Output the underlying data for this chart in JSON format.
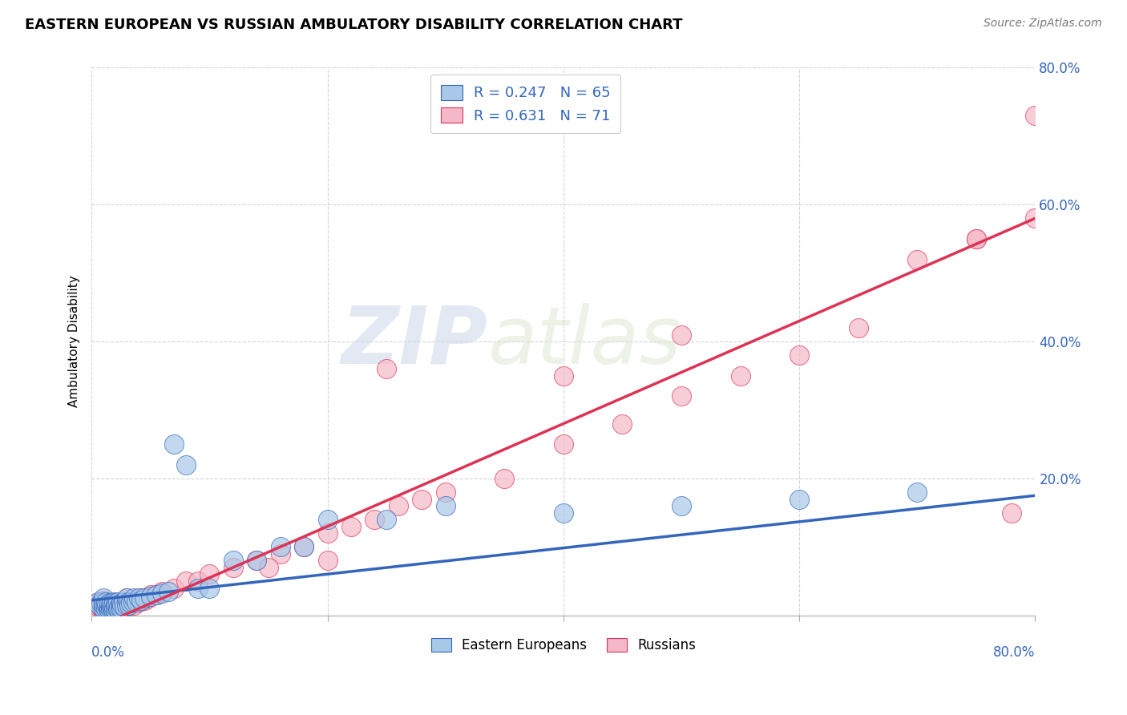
{
  "title": "EASTERN EUROPEAN VS RUSSIAN AMBULATORY DISABILITY CORRELATION CHART",
  "source": "Source: ZipAtlas.com",
  "ylabel": "Ambulatory Disability",
  "legend_blue_label": "R = 0.247   N = 65",
  "legend_pink_label": "R = 0.631   N = 71",
  "legend_bottom_blue": "Eastern Europeans",
  "legend_bottom_pink": "Russians",
  "blue_color": "#a8c8e8",
  "pink_color": "#f4b8c8",
  "blue_line_color": "#3366bb",
  "pink_line_color": "#dd3355",
  "watermark_zip": "ZIP",
  "watermark_atlas": "atlas",
  "xlim": [
    0.0,
    0.8
  ],
  "ylim": [
    0.0,
    0.8
  ],
  "ytick_vals": [
    0.0,
    0.2,
    0.4,
    0.6,
    0.8
  ],
  "ytick_labels": [
    "",
    "20.0%",
    "40.0%",
    "60.0%",
    "80.0%"
  ],
  "xtick_vals": [
    0.0,
    0.2,
    0.4,
    0.6,
    0.8
  ],
  "blue_regression": [
    0.022,
    0.175
  ],
  "pink_regression": [
    -0.02,
    0.58
  ],
  "blue_scatter_x": [
    0.005,
    0.007,
    0.008,
    0.01,
    0.01,
    0.01,
    0.01,
    0.012,
    0.012,
    0.013,
    0.014,
    0.015,
    0.015,
    0.015,
    0.016,
    0.016,
    0.017,
    0.017,
    0.018,
    0.018,
    0.019,
    0.019,
    0.02,
    0.02,
    0.02,
    0.021,
    0.022,
    0.022,
    0.023,
    0.024,
    0.025,
    0.025,
    0.026,
    0.027,
    0.028,
    0.03,
    0.03,
    0.031,
    0.032,
    0.033,
    0.035,
    0.036,
    0.038,
    0.04,
    0.042,
    0.045,
    0.05,
    0.055,
    0.06,
    0.065,
    0.07,
    0.08,
    0.09,
    0.1,
    0.12,
    0.14,
    0.16,
    0.18,
    0.2,
    0.25,
    0.3,
    0.4,
    0.5,
    0.6,
    0.7
  ],
  "blue_scatter_y": [
    0.02,
    0.015,
    0.018,
    0.01,
    0.015,
    0.02,
    0.025,
    0.01,
    0.02,
    0.015,
    0.01,
    0.008,
    0.012,
    0.018,
    0.01,
    0.015,
    0.012,
    0.018,
    0.008,
    0.015,
    0.01,
    0.02,
    0.008,
    0.012,
    0.018,
    0.015,
    0.01,
    0.02,
    0.012,
    0.015,
    0.01,
    0.018,
    0.015,
    0.02,
    0.012,
    0.015,
    0.025,
    0.02,
    0.015,
    0.018,
    0.02,
    0.025,
    0.02,
    0.025,
    0.022,
    0.025,
    0.028,
    0.03,
    0.032,
    0.035,
    0.25,
    0.22,
    0.04,
    0.04,
    0.08,
    0.08,
    0.1,
    0.1,
    0.14,
    0.14,
    0.16,
    0.15,
    0.16,
    0.17,
    0.18
  ],
  "pink_scatter_x": [
    0.005,
    0.006,
    0.007,
    0.008,
    0.009,
    0.01,
    0.01,
    0.011,
    0.012,
    0.013,
    0.014,
    0.015,
    0.015,
    0.016,
    0.017,
    0.018,
    0.019,
    0.02,
    0.021,
    0.022,
    0.023,
    0.024,
    0.025,
    0.026,
    0.027,
    0.028,
    0.03,
    0.03,
    0.032,
    0.034,
    0.036,
    0.038,
    0.04,
    0.042,
    0.045,
    0.048,
    0.05,
    0.055,
    0.06,
    0.07,
    0.08,
    0.09,
    0.1,
    0.12,
    0.14,
    0.16,
    0.18,
    0.2,
    0.22,
    0.24,
    0.26,
    0.28,
    0.3,
    0.35,
    0.4,
    0.45,
    0.5,
    0.55,
    0.6,
    0.65,
    0.7,
    0.75,
    0.78,
    0.8,
    0.8,
    0.75,
    0.5,
    0.4,
    0.2,
    0.15,
    0.25
  ],
  "pink_scatter_y": [
    0.018,
    0.012,
    0.015,
    0.02,
    0.01,
    0.008,
    0.022,
    0.015,
    0.01,
    0.018,
    0.012,
    0.008,
    0.015,
    0.012,
    0.018,
    0.01,
    0.015,
    0.012,
    0.018,
    0.01,
    0.015,
    0.018,
    0.012,
    0.015,
    0.02,
    0.015,
    0.012,
    0.025,
    0.018,
    0.02,
    0.015,
    0.022,
    0.02,
    0.025,
    0.022,
    0.025,
    0.03,
    0.03,
    0.035,
    0.04,
    0.05,
    0.05,
    0.06,
    0.07,
    0.08,
    0.09,
    0.1,
    0.12,
    0.13,
    0.14,
    0.16,
    0.17,
    0.18,
    0.2,
    0.25,
    0.28,
    0.32,
    0.35,
    0.38,
    0.42,
    0.52,
    0.55,
    0.15,
    0.73,
    0.58,
    0.55,
    0.41,
    0.35,
    0.08,
    0.07,
    0.36
  ]
}
